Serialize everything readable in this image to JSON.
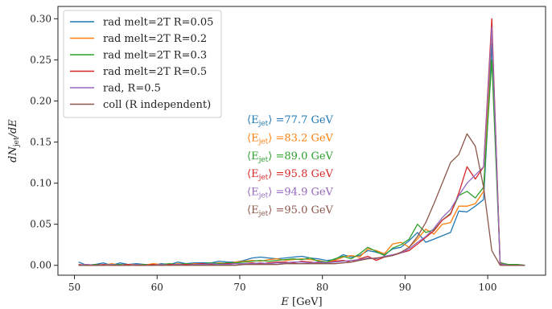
{
  "chart_data": {
    "type": "line",
    "xlabel": "E [GeV]",
    "ylabel": "dN_jet/dE",
    "xlim": [
      48,
      107
    ],
    "ylim": [
      -0.012,
      0.315
    ],
    "x_ticks": [
      50,
      60,
      70,
      80,
      90,
      100
    ],
    "y_ticks": [
      0.0,
      0.05,
      0.1,
      0.15,
      0.2,
      0.25,
      0.3
    ],
    "y_tick_labels": [
      "0.00",
      "0.05",
      "0.10",
      "0.15",
      "0.20",
      "0.25",
      "0.30"
    ],
    "grid": false,
    "legend_position": "top-left",
    "x": [
      50.5,
      51.5,
      52.5,
      53.5,
      54.5,
      55.5,
      56.5,
      57.5,
      58.5,
      59.5,
      60.5,
      61.5,
      62.5,
      63.5,
      64.5,
      65.5,
      66.5,
      67.5,
      68.5,
      69.5,
      70.5,
      71.5,
      72.5,
      73.5,
      74.5,
      75.5,
      76.5,
      77.5,
      78.5,
      79.5,
      80.5,
      81.5,
      82.5,
      83.5,
      84.5,
      85.5,
      86.5,
      87.5,
      88.5,
      89.5,
      90.5,
      91.5,
      92.5,
      93.5,
      94.5,
      95.5,
      96.5,
      97.5,
      98.5,
      99.5,
      100.5,
      101.5,
      102.5,
      103.5,
      104.5
    ],
    "series": [
      {
        "name": "rad melt=2T R=0.05",
        "color": "#1f77b4",
        "values": [
          0.004,
          0.0,
          0.001,
          0.003,
          0.0,
          0.003,
          0.001,
          0.002,
          0.001,
          0.0,
          0.002,
          0.001,
          0.004,
          0.002,
          0.003,
          0.003,
          0.003,
          0.005,
          0.004,
          0.004,
          0.006,
          0.009,
          0.01,
          0.009,
          0.008,
          0.009,
          0.01,
          0.011,
          0.009,
          0.008,
          0.006,
          0.007,
          0.013,
          0.01,
          0.012,
          0.018,
          0.016,
          0.013,
          0.02,
          0.022,
          0.03,
          0.04,
          0.028,
          0.032,
          0.036,
          0.04,
          0.066,
          0.065,
          0.072,
          0.08,
          0.27,
          0.002,
          0.0,
          0.001,
          0.0
        ]
      },
      {
        "name": "rad melt=2T R=0.2",
        "color": "#ff7f0e",
        "values": [
          0.0,
          0.001,
          0.0,
          0.0,
          0.002,
          0.0,
          0.001,
          0.001,
          0.0,
          0.002,
          0.001,
          0.0,
          0.002,
          0.001,
          0.002,
          0.002,
          0.002,
          0.003,
          0.002,
          0.004,
          0.005,
          0.006,
          0.005,
          0.007,
          0.008,
          0.006,
          0.007,
          0.008,
          0.007,
          0.006,
          0.004,
          0.006,
          0.01,
          0.012,
          0.01,
          0.02,
          0.018,
          0.014,
          0.026,
          0.028,
          0.022,
          0.032,
          0.044,
          0.038,
          0.05,
          0.052,
          0.072,
          0.072,
          0.075,
          0.09,
          0.29,
          0.004,
          0.0,
          0.0,
          0.0
        ]
      },
      {
        "name": "rad melt=2T R=0.3",
        "color": "#2ca02c",
        "values": [
          0.0,
          0.0,
          0.001,
          0.0,
          0.001,
          0.001,
          0.0,
          0.001,
          0.001,
          0.0,
          0.001,
          0.002,
          0.001,
          0.002,
          0.001,
          0.002,
          0.003,
          0.002,
          0.003,
          0.003,
          0.004,
          0.005,
          0.006,
          0.005,
          0.006,
          0.007,
          0.008,
          0.007,
          0.009,
          0.005,
          0.004,
          0.008,
          0.011,
          0.008,
          0.014,
          0.022,
          0.017,
          0.012,
          0.021,
          0.025,
          0.032,
          0.05,
          0.04,
          0.043,
          0.055,
          0.063,
          0.085,
          0.09,
          0.082,
          0.095,
          0.25,
          0.003,
          0.001,
          0.001,
          0.0
        ]
      },
      {
        "name": "rad melt=2T R=0.5",
        "color": "#d62728",
        "values": [
          0.001,
          0.0,
          0.0,
          0.001,
          0.0,
          0.0,
          0.001,
          0.0,
          0.0,
          0.001,
          0.0,
          0.001,
          0.001,
          0.001,
          0.001,
          0.002,
          0.001,
          0.001,
          0.002,
          0.002,
          0.002,
          0.003,
          0.002,
          0.003,
          0.004,
          0.004,
          0.003,
          0.005,
          0.004,
          0.003,
          0.003,
          0.005,
          0.006,
          0.004,
          0.008,
          0.011,
          0.006,
          0.01,
          0.012,
          0.015,
          0.018,
          0.026,
          0.034,
          0.042,
          0.055,
          0.062,
          0.088,
          0.12,
          0.105,
          0.12,
          0.3,
          0.001,
          0.0,
          0.0,
          0.0
        ]
      },
      {
        "name": "rad, R=0.5",
        "color": "#9467bd",
        "values": [
          0.0,
          0.001,
          0.0,
          0.0,
          0.001,
          0.0,
          0.0,
          0.001,
          0.0,
          0.0,
          0.001,
          0.0,
          0.001,
          0.0,
          0.001,
          0.001,
          0.002,
          0.001,
          0.001,
          0.002,
          0.002,
          0.002,
          0.003,
          0.002,
          0.003,
          0.003,
          0.004,
          0.004,
          0.003,
          0.004,
          0.003,
          0.004,
          0.005,
          0.006,
          0.007,
          0.009,
          0.008,
          0.011,
          0.013,
          0.015,
          0.02,
          0.028,
          0.035,
          0.045,
          0.058,
          0.068,
          0.085,
          0.1,
          0.11,
          0.12,
          0.29,
          0.002,
          0.0,
          0.0,
          0.0
        ]
      },
      {
        "name": "coll (R independent)",
        "color": "#8c564b",
        "values": [
          0.0,
          0.0,
          0.0,
          0.0,
          0.0,
          0.0,
          0.0,
          0.0,
          0.0,
          0.0,
          0.0,
          0.0,
          0.0,
          0.0,
          0.0,
          0.0,
          0.0,
          0.0,
          0.0,
          0.0,
          0.001,
          0.001,
          0.001,
          0.001,
          0.001,
          0.002,
          0.002,
          0.002,
          0.002,
          0.002,
          0.002,
          0.002,
          0.003,
          0.004,
          0.006,
          0.008,
          0.009,
          0.01,
          0.012,
          0.016,
          0.022,
          0.035,
          0.052,
          0.075,
          0.1,
          0.125,
          0.135,
          0.16,
          0.145,
          0.095,
          0.018,
          0.0,
          0.0,
          0.0,
          0.0
        ]
      }
    ],
    "annotations": [
      {
        "text": "⟨E_jet⟩ =77.7 GeV",
        "color": "#1f77b4"
      },
      {
        "text": "⟨E_jet⟩ =83.2 GeV",
        "color": "#ff7f0e"
      },
      {
        "text": "⟨E_jet⟩ =89.0 GeV",
        "color": "#2ca02c"
      },
      {
        "text": "⟨E_jet⟩ =95.8 GeV",
        "color": "#d62728"
      },
      {
        "text": "⟨E_jet⟩ =94.9 GeV",
        "color": "#9467bd"
      },
      {
        "text": "⟨E_jet⟩ =95.0 GeV",
        "color": "#8c564b"
      }
    ]
  }
}
